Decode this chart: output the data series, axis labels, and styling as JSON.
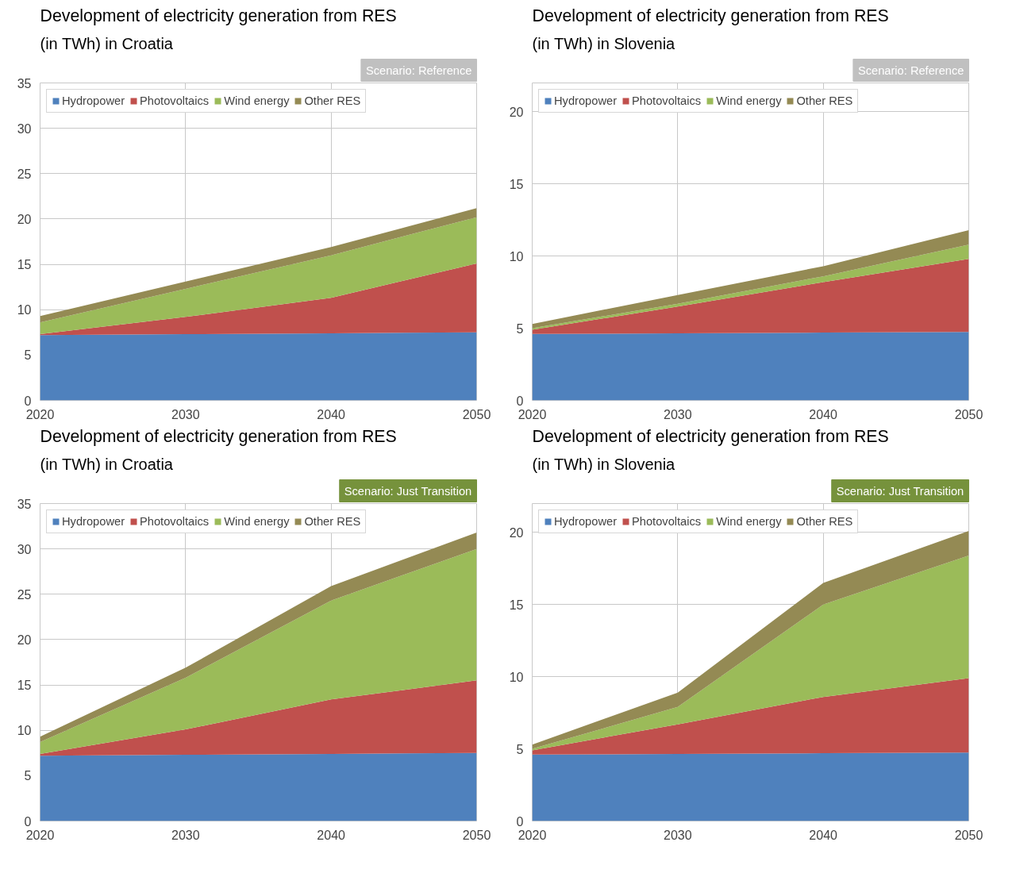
{
  "chart_data": [
    {
      "type": "area",
      "title": "Development of electricity generation from RES",
      "subtitle": "(in TWh) in Croatia",
      "annotations": [
        "Scenario: Reference"
      ],
      "x": [
        2020,
        2030,
        2040,
        2050
      ],
      "xlim": [
        2020,
        2050
      ],
      "xticks": [
        2020,
        2030,
        2040,
        2050
      ],
      "ylim": [
        0,
        35
      ],
      "yticks": [
        0,
        5,
        10,
        15,
        20,
        25,
        30,
        35
      ],
      "stacked": true,
      "grid": true,
      "legend": "top left",
      "series": [
        {
          "name": "Hydropower",
          "color": "#4f81bd",
          "values": [
            7.2,
            7.3,
            7.4,
            7.5
          ]
        },
        {
          "name": "Photovoltaics",
          "color": "#c0504d",
          "values": [
            0.1,
            1.9,
            3.9,
            7.6
          ]
        },
        {
          "name": "Wind energy",
          "color": "#9bbb59",
          "values": [
            1.3,
            3.1,
            4.7,
            5.1
          ]
        },
        {
          "name": "Other RES",
          "color": "#948a54",
          "values": [
            0.7,
            0.8,
            0.9,
            1.0
          ]
        }
      ]
    },
    {
      "type": "area",
      "title": "Development of electricity generation from RES",
      "subtitle": "(in TWh) in Slovenia",
      "annotations": [
        "Scenario: Reference"
      ],
      "x": [
        2020,
        2030,
        2040,
        2050
      ],
      "xlim": [
        2020,
        2050
      ],
      "xticks": [
        2020,
        2030,
        2040,
        2050
      ],
      "ylim": [
        0,
        22
      ],
      "yticks": [
        0,
        5,
        10,
        15,
        20
      ],
      "stacked": true,
      "grid": true,
      "legend": "top left",
      "series": [
        {
          "name": "Hydropower",
          "color": "#4f81bd",
          "values": [
            4.6,
            4.65,
            4.7,
            4.75
          ]
        },
        {
          "name": "Photovoltaics",
          "color": "#c0504d",
          "values": [
            0.3,
            1.85,
            3.5,
            5.05
          ]
        },
        {
          "name": "Wind energy",
          "color": "#9bbb59",
          "values": [
            0.1,
            0.2,
            0.4,
            1.0
          ]
        },
        {
          "name": "Other RES",
          "color": "#948a54",
          "values": [
            0.3,
            0.6,
            0.7,
            1.0
          ]
        }
      ]
    },
    {
      "type": "area",
      "title": "Development of electricity generation from RES",
      "subtitle": "(in TWh) in Croatia",
      "annotations": [
        "Scenario: Just Transition"
      ],
      "x": [
        2020,
        2030,
        2040,
        2050
      ],
      "xlim": [
        2020,
        2050
      ],
      "xticks": [
        2020,
        2030,
        2040,
        2050
      ],
      "ylim": [
        0,
        35
      ],
      "yticks": [
        0,
        5,
        10,
        15,
        20,
        25,
        30,
        35
      ],
      "stacked": true,
      "grid": true,
      "legend": "top left",
      "series": [
        {
          "name": "Hydropower",
          "color": "#4f81bd",
          "values": [
            7.2,
            7.3,
            7.4,
            7.5
          ]
        },
        {
          "name": "Photovoltaics",
          "color": "#c0504d",
          "values": [
            0.2,
            2.8,
            6.0,
            8.0
          ]
        },
        {
          "name": "Wind energy",
          "color": "#9bbb59",
          "values": [
            1.3,
            5.7,
            10.9,
            14.5
          ]
        },
        {
          "name": "Other RES",
          "color": "#948a54",
          "values": [
            0.6,
            1.1,
            1.6,
            1.8
          ]
        }
      ]
    },
    {
      "type": "area",
      "title": "Development of electricity generation from RES",
      "subtitle": "(in TWh) in Slovenia",
      "annotations": [
        "Scenario: Just Transition"
      ],
      "x": [
        2020,
        2030,
        2040,
        2050
      ],
      "xlim": [
        2020,
        2050
      ],
      "xticks": [
        2020,
        2030,
        2040,
        2050
      ],
      "ylim": [
        0,
        22
      ],
      "yticks": [
        0,
        5,
        10,
        15,
        20
      ],
      "stacked": true,
      "grid": true,
      "legend": "top left",
      "series": [
        {
          "name": "Hydropower",
          "color": "#4f81bd",
          "values": [
            4.6,
            4.65,
            4.7,
            4.75
          ]
        },
        {
          "name": "Photovoltaics",
          "color": "#c0504d",
          "values": [
            0.3,
            2.05,
            3.9,
            5.15
          ]
        },
        {
          "name": "Wind energy",
          "color": "#9bbb59",
          "values": [
            0.1,
            1.2,
            6.4,
            8.5
          ]
        },
        {
          "name": "Other RES",
          "color": "#948a54",
          "values": [
            0.3,
            1.0,
            1.5,
            1.7
          ]
        }
      ]
    }
  ]
}
